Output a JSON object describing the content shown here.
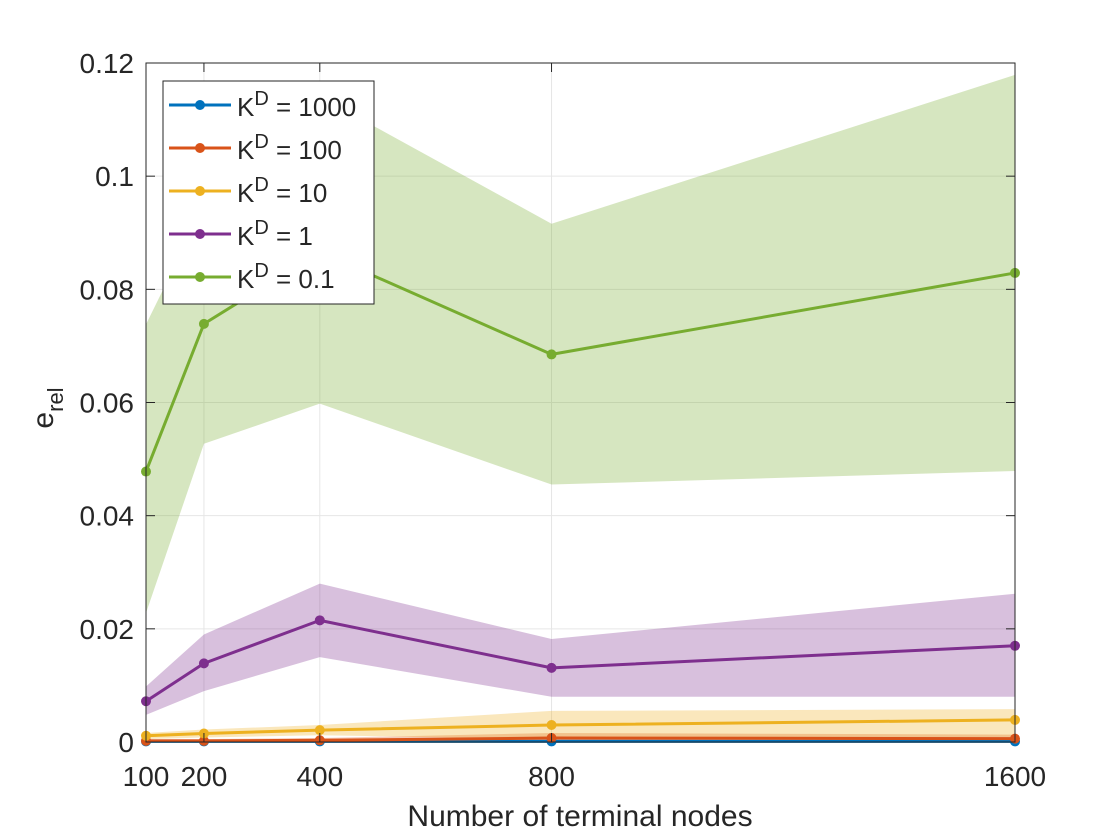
{
  "chart_data": {
    "type": "line",
    "xlabel": "Number of terminal nodes",
    "ylabel": "e",
    "ylabel_sub": "rel",
    "x": [
      100,
      200,
      400,
      800,
      1600
    ],
    "xticks": [
      100,
      200,
      400,
      800,
      1600
    ],
    "xtick_labels": [
      "100",
      "200",
      "400",
      "800",
      "1600"
    ],
    "xlim": [
      100,
      1600
    ],
    "ylim": [
      0,
      0.12
    ],
    "yticks": [
      0,
      0.02,
      0.04,
      0.06,
      0.08,
      0.1,
      0.12
    ],
    "ytick_labels": [
      "0",
      "0.02",
      "0.04",
      "0.06",
      "0.08",
      "0.1",
      "0.12"
    ],
    "grid": true,
    "legend_position": "top-left",
    "series": [
      {
        "name": "1000",
        "legend_prefix": "K",
        "legend_sup": "D",
        "color": "#0072BD",
        "values": [
          0.0001,
          0.0001,
          0.0001,
          0.0001,
          0.0001
        ],
        "band_lower": [
          0.0,
          0.0,
          0.0,
          0.0,
          0.0
        ],
        "band_upper": [
          0.0003,
          0.0003,
          0.0003,
          0.0004,
          0.0004
        ]
      },
      {
        "name": "100",
        "legend_prefix": "K",
        "legend_sup": "D",
        "color": "#D95319",
        "values": [
          0.0002,
          0.0002,
          0.0003,
          0.0007,
          0.0006
        ],
        "band_lower": [
          0.0,
          0.0,
          0.0001,
          0.0001,
          0.0001
        ],
        "band_upper": [
          0.0005,
          0.0005,
          0.0007,
          0.0016,
          0.0013
        ]
      },
      {
        "name": "10",
        "legend_prefix": "K",
        "legend_sup": "D",
        "color": "#EDB120",
        "values": [
          0.0011,
          0.0015,
          0.0021,
          0.003,
          0.0039
        ],
        "band_lower": [
          0.0005,
          0.0008,
          0.0012,
          0.0005,
          0.0009
        ],
        "band_upper": [
          0.0016,
          0.0022,
          0.003,
          0.0055,
          0.0058
        ]
      },
      {
        "name": "1",
        "legend_prefix": "K",
        "legend_sup": "D",
        "color": "#7E2F8E",
        "values": [
          0.0072,
          0.0139,
          0.0215,
          0.0131,
          0.017
        ],
        "band_lower": [
          0.0048,
          0.009,
          0.015,
          0.008,
          0.008
        ],
        "band_upper": [
          0.0098,
          0.019,
          0.028,
          0.0182,
          0.0262
        ]
      },
      {
        "name": "0.1",
        "legend_prefix": "K",
        "legend_sup": "D",
        "color": "#77AC30",
        "values": [
          0.0478,
          0.0739,
          0.0866,
          0.0685,
          0.0829
        ],
        "band_lower": [
          0.0228,
          0.0527,
          0.0598,
          0.0455,
          0.0479
        ],
        "band_upper": [
          0.0738,
          0.0946,
          0.1141,
          0.0916,
          0.1179
        ]
      }
    ]
  }
}
